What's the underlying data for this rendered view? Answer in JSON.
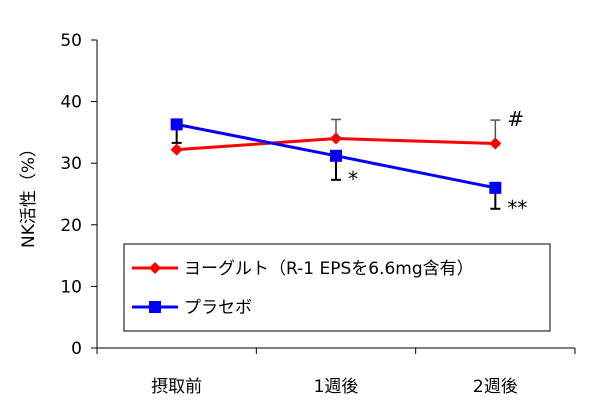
{
  "chart_data": {
    "type": "line",
    "ylabel": "NK活性（%）",
    "ylim": [
      0,
      50
    ],
    "yticks": [
      0,
      10,
      20,
      30,
      40,
      50
    ],
    "categories": [
      "摂取前",
      "1週後",
      "2週後"
    ],
    "grid": false,
    "legend_position": "bottom-left",
    "series": [
      {
        "name": "ヨーグルト（R-1 EPSを6.6mg含有）",
        "color": "#ff0000",
        "marker": "diamond",
        "values": [
          32.2,
          34.0,
          33.2
        ],
        "error_plus": [
          0,
          3.1,
          3.8
        ],
        "error_minus": [
          0,
          0,
          0
        ]
      },
      {
        "name": "プラセボ",
        "color": "#0000ff",
        "marker": "square",
        "values": [
          36.3,
          31.2,
          26.0
        ],
        "error_plus": [
          0,
          0,
          0
        ],
        "error_minus": [
          3.0,
          3.9,
          3.4
        ]
      }
    ],
    "annotations": [
      {
        "text": "*",
        "category": "1週後",
        "series": "プラセボ"
      },
      {
        "text": "#",
        "category": "2週後",
        "series": "ヨーグルト（R-1 EPSを6.6mg含有）"
      },
      {
        "text": "**",
        "category": "2週後",
        "series": "プラセボ"
      }
    ]
  }
}
